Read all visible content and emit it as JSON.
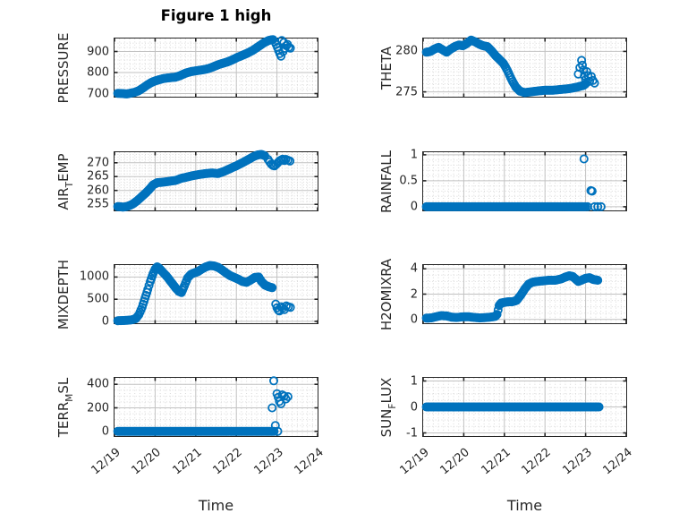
{
  "chart_data": {
    "type": "scatter",
    "title": "Figure 1 high",
    "xlabel": "Time",
    "marker_color": "#0072BD",
    "grid": "major solid, minor dotted, box on",
    "layout": "4 rows x 2 columns of time-series subplots",
    "x_axis": {
      "tick_labels": [
        "12/19",
        "12/20",
        "12/21",
        "12/22",
        "12/23",
        "12/24"
      ],
      "tick_days": [
        0,
        1,
        2,
        3,
        4,
        5
      ],
      "range_days": [
        0,
        5
      ]
    },
    "subplots": [
      {
        "name": "PRESSURE",
        "row": 0,
        "col": 0,
        "ylabel_pre": "PRESSURE",
        "ylabel_sub": "",
        "ylabel_post": "",
        "ytick_vals": [
          700,
          800,
          900
        ],
        "ytick_labels": [
          "700",
          "800",
          "900"
        ],
        "ylim": [
          685,
          962
        ],
        "minor_step": 20,
        "curve": [
          [
            0.08,
            701
          ],
          [
            0.2,
            700
          ],
          [
            0.3,
            698
          ],
          [
            0.4,
            702
          ],
          [
            0.5,
            706
          ],
          [
            0.6,
            714
          ],
          [
            0.7,
            726
          ],
          [
            0.8,
            740
          ],
          [
            0.9,
            752
          ],
          [
            1.0,
            760
          ],
          [
            1.1,
            766
          ],
          [
            1.2,
            771
          ],
          [
            1.3,
            774
          ],
          [
            1.4,
            776
          ],
          [
            1.5,
            778
          ],
          [
            1.6,
            784
          ],
          [
            1.7,
            793
          ],
          [
            1.8,
            800
          ],
          [
            1.9,
            805
          ],
          [
            2.0,
            808
          ],
          [
            2.1,
            811
          ],
          [
            2.2,
            814
          ],
          [
            2.3,
            818
          ],
          [
            2.4,
            825
          ],
          [
            2.5,
            833
          ],
          [
            2.6,
            840
          ],
          [
            2.7,
            846
          ],
          [
            2.8,
            852
          ],
          [
            2.9,
            860
          ],
          [
            3.0,
            870
          ],
          [
            3.1,
            878
          ],
          [
            3.2,
            886
          ],
          [
            3.3,
            895
          ],
          [
            3.4,
            905
          ],
          [
            3.5,
            918
          ],
          [
            3.6,
            931
          ],
          [
            3.7,
            944
          ],
          [
            3.8,
            953
          ],
          [
            3.9,
            957
          ]
        ],
        "scatter": [
          [
            3.95,
            946
          ],
          [
            3.98,
            934
          ],
          [
            4.01,
            920
          ],
          [
            4.04,
            905
          ],
          [
            4.07,
            890
          ],
          [
            4.1,
            878
          ],
          [
            4.12,
            952
          ],
          [
            4.15,
            900
          ],
          [
            4.17,
            943
          ],
          [
            4.2,
            915
          ],
          [
            4.23,
            928
          ],
          [
            4.26,
            934
          ],
          [
            4.29,
            920
          ],
          [
            4.33,
            916
          ]
        ]
      },
      {
        "name": "THETA",
        "row": 0,
        "col": 1,
        "ylabel_pre": "THETA",
        "ylabel_sub": "",
        "ylabel_post": "",
        "ytick_vals": [
          275,
          280
        ],
        "ytick_labels": [
          "275",
          "280"
        ],
        "ylim": [
          274.4,
          281.6
        ],
        "minor_step": 0.5,
        "curve": [
          [
            0.08,
            279.9
          ],
          [
            0.18,
            280.0
          ],
          [
            0.28,
            280.3
          ],
          [
            0.38,
            280.5
          ],
          [
            0.48,
            280.2
          ],
          [
            0.58,
            279.9
          ],
          [
            0.68,
            280.3
          ],
          [
            0.78,
            280.6
          ],
          [
            0.88,
            280.8
          ],
          [
            0.98,
            280.7
          ],
          [
            1.08,
            281.0
          ],
          [
            1.18,
            281.4
          ],
          [
            1.28,
            281.2
          ],
          [
            1.38,
            280.9
          ],
          [
            1.48,
            280.7
          ],
          [
            1.58,
            280.6
          ],
          [
            1.68,
            280.1
          ],
          [
            1.78,
            279.5
          ],
          [
            1.88,
            279.0
          ],
          [
            1.98,
            278.5
          ],
          [
            2.08,
            277.6
          ],
          [
            2.18,
            276.5
          ],
          [
            2.28,
            275.6
          ],
          [
            2.38,
            275.1
          ],
          [
            2.5,
            274.9
          ],
          [
            2.65,
            275.0
          ],
          [
            2.8,
            275.1
          ],
          [
            3.0,
            275.2
          ],
          [
            3.2,
            275.2
          ],
          [
            3.4,
            275.3
          ],
          [
            3.6,
            275.4
          ],
          [
            3.8,
            275.6
          ],
          [
            3.95,
            275.8
          ],
          [
            4.0,
            276.0
          ]
        ],
        "scatter": [
          [
            3.82,
            277.2
          ],
          [
            3.86,
            278.0
          ],
          [
            3.9,
            278.9
          ],
          [
            3.92,
            278.3
          ],
          [
            3.95,
            277.7
          ],
          [
            3.97,
            277.0
          ],
          [
            4.0,
            276.5
          ],
          [
            4.03,
            277.5
          ],
          [
            4.06,
            277.0
          ],
          [
            4.1,
            276.3
          ],
          [
            4.14,
            276.9
          ],
          [
            4.18,
            276.4
          ],
          [
            4.22,
            276.1
          ]
        ]
      },
      {
        "name": "AIR_TEMP",
        "row": 1,
        "col": 0,
        "ylabel_pre": "AIR",
        "ylabel_sub": "T",
        "ylabel_post": "EMP",
        "ytick_vals": [
          255,
          260,
          265,
          270
        ],
        "ytick_labels": [
          "255",
          "260",
          "265",
          "270"
        ],
        "ylim": [
          252.8,
          273.8
        ],
        "minor_step": 1,
        "curve": [
          [
            0.08,
            254.2
          ],
          [
            0.22,
            254.0
          ],
          [
            0.35,
            254.4
          ],
          [
            0.45,
            255.1
          ],
          [
            0.55,
            256.2
          ],
          [
            0.65,
            257.5
          ],
          [
            0.75,
            258.8
          ],
          [
            0.85,
            260.3
          ],
          [
            0.95,
            262.0
          ],
          [
            1.05,
            262.8
          ],
          [
            1.2,
            263.0
          ],
          [
            1.35,
            263.3
          ],
          [
            1.5,
            263.6
          ],
          [
            1.65,
            264.4
          ],
          [
            1.8,
            264.9
          ],
          [
            1.95,
            265.4
          ],
          [
            2.1,
            265.8
          ],
          [
            2.25,
            266.1
          ],
          [
            2.4,
            266.3
          ],
          [
            2.55,
            266.1
          ],
          [
            2.7,
            266.9
          ],
          [
            2.85,
            267.9
          ],
          [
            3.0,
            268.9
          ],
          [
            3.15,
            270.0
          ],
          [
            3.3,
            271.2
          ],
          [
            3.42,
            272.2
          ],
          [
            3.52,
            272.8
          ],
          [
            3.62,
            273.0
          ],
          [
            3.7,
            272.5
          ]
        ],
        "scatter": [
          [
            3.78,
            271.2
          ],
          [
            3.82,
            270.3
          ],
          [
            3.86,
            269.5
          ],
          [
            3.9,
            269.0
          ],
          [
            3.94,
            268.9
          ],
          [
            3.98,
            269.4
          ],
          [
            4.02,
            270.0
          ],
          [
            4.06,
            270.6
          ],
          [
            4.1,
            271.0
          ],
          [
            4.14,
            271.3
          ],
          [
            4.18,
            270.8
          ],
          [
            4.22,
            271.2
          ],
          [
            4.27,
            270.9
          ],
          [
            4.32,
            270.6
          ]
        ]
      },
      {
        "name": "RAINFALL",
        "row": 1,
        "col": 1,
        "ylabel_pre": "RAINFALL",
        "ylabel_sub": "",
        "ylabel_post": "",
        "ytick_vals": [
          0,
          0.5,
          1
        ],
        "ytick_labels": [
          "0",
          "0.5",
          "1"
        ],
        "ylim": [
          -0.07,
          1.05
        ],
        "minor_step": 0.1,
        "curve": [
          [
            0.08,
            0
          ],
          [
            4.0,
            0
          ]
        ],
        "scatter": [
          [
            3.96,
            0.92
          ],
          [
            4.13,
            0.31
          ],
          [
            4.16,
            0.3
          ],
          [
            4.05,
            0
          ],
          [
            4.22,
            0
          ],
          [
            4.3,
            0
          ],
          [
            4.38,
            0
          ]
        ]
      },
      {
        "name": "MIXDEPTH",
        "row": 2,
        "col": 0,
        "ylabel_pre": "MIXDEPTH",
        "ylabel_sub": "",
        "ylabel_post": "",
        "ytick_vals": [
          0,
          500,
          1000
        ],
        "ytick_labels": [
          "0",
          "500",
          "1000"
        ],
        "ylim": [
          -42,
          1271
        ],
        "minor_step": 100,
        "curve": [
          [
            0.08,
            15
          ],
          [
            0.25,
            20
          ],
          [
            0.4,
            30
          ],
          [
            0.52,
            60
          ],
          [
            0.6,
            150
          ],
          [
            0.68,
            320
          ],
          [
            0.75,
            520
          ],
          [
            0.82,
            720
          ],
          [
            0.88,
            900
          ],
          [
            0.95,
            1080
          ],
          [
            1.0,
            1180
          ],
          [
            1.05,
            1230
          ],
          [
            1.1,
            1200
          ],
          [
            1.2,
            1100
          ],
          [
            1.3,
            1000
          ],
          [
            1.4,
            880
          ],
          [
            1.5,
            760
          ],
          [
            1.58,
            680
          ],
          [
            1.65,
            650
          ],
          [
            1.72,
            800
          ],
          [
            1.8,
            980
          ],
          [
            1.88,
            1060
          ],
          [
            1.95,
            1090
          ],
          [
            2.05,
            1120
          ],
          [
            2.15,
            1180
          ],
          [
            2.25,
            1230
          ],
          [
            2.35,
            1260
          ],
          [
            2.45,
            1250
          ],
          [
            2.55,
            1220
          ],
          [
            2.65,
            1160
          ],
          [
            2.75,
            1090
          ],
          [
            2.85,
            1030
          ],
          [
            2.95,
            990
          ],
          [
            3.05,
            950
          ],
          [
            3.15,
            900
          ],
          [
            3.25,
            880
          ],
          [
            3.35,
            930
          ],
          [
            3.45,
            990
          ],
          [
            3.55,
            1000
          ],
          [
            3.62,
            900
          ],
          [
            3.7,
            820
          ],
          [
            3.8,
            780
          ],
          [
            3.88,
            760
          ]
        ],
        "scatter": [
          [
            3.97,
            390
          ],
          [
            4.0,
            305
          ],
          [
            4.03,
            255
          ],
          [
            4.06,
            235
          ],
          [
            4.1,
            330
          ],
          [
            4.14,
            300
          ],
          [
            4.18,
            265
          ],
          [
            4.23,
            350
          ],
          [
            4.28,
            330
          ],
          [
            4.33,
            315
          ]
        ]
      },
      {
        "name": "H2OMIXRA",
        "row": 2,
        "col": 1,
        "ylabel_pre": "H2OMIXRA",
        "ylabel_sub": "",
        "ylabel_post": "",
        "ytick_vals": [
          0,
          2,
          4
        ],
        "ytick_labels": [
          "0",
          "2",
          "4"
        ],
        "ylim": [
          -0.3,
          4.3
        ],
        "minor_step": 0.5,
        "curve": [
          [
            0.08,
            0.1
          ],
          [
            0.2,
            0.12
          ],
          [
            0.32,
            0.22
          ],
          [
            0.45,
            0.3
          ],
          [
            0.58,
            0.28
          ],
          [
            0.7,
            0.18
          ],
          [
            0.82,
            0.15
          ],
          [
            0.95,
            0.2
          ],
          [
            1.1,
            0.22
          ],
          [
            1.25,
            0.16
          ],
          [
            1.4,
            0.12
          ],
          [
            1.55,
            0.15
          ],
          [
            1.7,
            0.2
          ],
          [
            1.78,
            0.25
          ],
          [
            1.82,
            0.4
          ],
          [
            1.87,
            1.1
          ],
          [
            1.92,
            1.3
          ],
          [
            2.0,
            1.35
          ],
          [
            2.1,
            1.4
          ],
          [
            2.2,
            1.4
          ],
          [
            2.3,
            1.5
          ],
          [
            2.4,
            1.9
          ],
          [
            2.5,
            2.4
          ],
          [
            2.6,
            2.8
          ],
          [
            2.7,
            2.95
          ],
          [
            2.8,
            3.0
          ],
          [
            2.95,
            3.05
          ],
          [
            3.1,
            3.1
          ],
          [
            3.25,
            3.1
          ],
          [
            3.4,
            3.2
          ],
          [
            3.5,
            3.35
          ],
          [
            3.6,
            3.45
          ],
          [
            3.68,
            3.4
          ],
          [
            3.75,
            3.2
          ],
          [
            3.82,
            3.0
          ],
          [
            3.9,
            3.1
          ],
          [
            4.0,
            3.25
          ],
          [
            4.1,
            3.3
          ],
          [
            4.2,
            3.15
          ],
          [
            4.3,
            3.1
          ]
        ],
        "scatter": []
      },
      {
        "name": "TERR_MSL",
        "row": 3,
        "col": 0,
        "ylabel_pre": "TERR",
        "ylabel_sub": "M",
        "ylabel_post": "SL",
        "ytick_vals": [
          0,
          200,
          400
        ],
        "ytick_labels": [
          "0",
          "200",
          "400"
        ],
        "ylim": [
          -40,
          455
        ],
        "minor_step": 50,
        "curve": [
          [
            0.08,
            0
          ],
          [
            3.93,
            0
          ]
        ],
        "scatter": [
          [
            3.88,
            200
          ],
          [
            3.92,
            430
          ],
          [
            3.96,
            50
          ],
          [
            4.0,
            320
          ],
          [
            4.03,
            290
          ],
          [
            4.06,
            255
          ],
          [
            4.1,
            235
          ],
          [
            4.13,
            310
          ],
          [
            4.18,
            300
          ],
          [
            4.22,
            275
          ],
          [
            4.27,
            295
          ],
          [
            4.02,
            0
          ]
        ]
      },
      {
        "name": "SUN_FLUX",
        "row": 3,
        "col": 1,
        "ylabel_pre": "SUN",
        "ylabel_sub": "F",
        "ylabel_post": "LUX",
        "ytick_vals": [
          -1,
          0,
          1
        ],
        "ytick_labels": [
          "-1",
          "0",
          "1"
        ],
        "ylim": [
          -1.12,
          1.12
        ],
        "minor_step": 0.25,
        "curve": [
          [
            0.08,
            0
          ],
          [
            4.33,
            0
          ]
        ],
        "scatter": []
      }
    ]
  }
}
